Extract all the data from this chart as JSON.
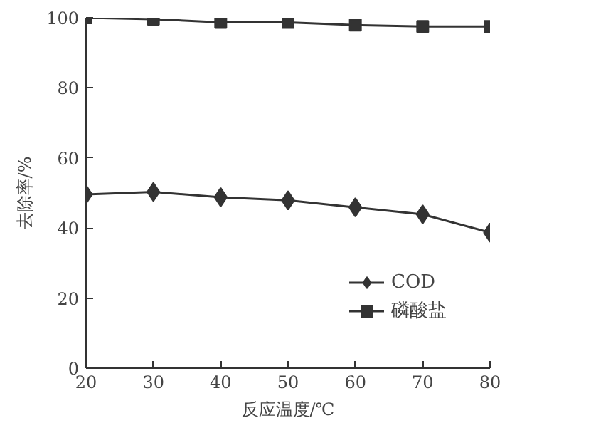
{
  "chart_data": {
    "type": "line",
    "xlabel": "反应温度/℃",
    "ylabel": "去除率/%",
    "x": [
      20,
      30,
      40,
      50,
      60,
      70,
      80
    ],
    "series": [
      {
        "name": "COD",
        "color": "#333333",
        "marker": "diamond",
        "values": [
          49.6,
          50.3,
          48.8,
          47.9,
          45.9,
          43.9,
          38.7
        ]
      },
      {
        "name": "磷酸盐",
        "color": "#333333",
        "marker": "square",
        "values": [
          100,
          99.6,
          98.7,
          98.7,
          97.9,
          97.5,
          97.5
        ]
      }
    ],
    "xlim": [
      20,
      80
    ],
    "xticks": [
      20,
      30,
      40,
      50,
      60,
      70,
      80
    ],
    "ylim": [
      0,
      100
    ],
    "yticks": [
      0,
      20,
      40,
      60,
      80,
      100
    ],
    "grid": false,
    "legend": "bottom right",
    "line_style": "solid"
  }
}
